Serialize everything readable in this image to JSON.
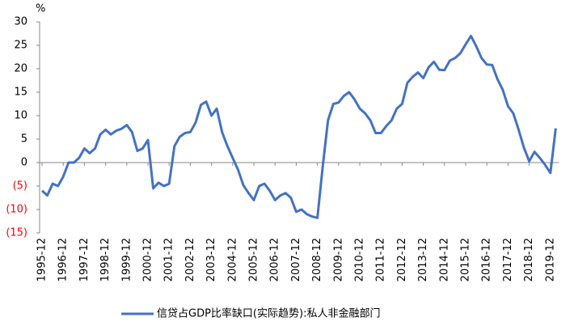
{
  "chart_data": {
    "type": "line",
    "unit": "%",
    "categories": [
      "1995-12",
      null,
      null,
      null,
      "1996-12",
      null,
      null,
      null,
      "1997-12",
      null,
      null,
      null,
      "1998-12",
      null,
      null,
      null,
      "1999-12",
      null,
      null,
      null,
      "2000-12",
      null,
      null,
      null,
      "2001-12",
      null,
      null,
      null,
      "2002-12",
      null,
      null,
      null,
      "2003-12",
      null,
      null,
      null,
      "2004-12",
      null,
      null,
      null,
      "2005-12",
      null,
      null,
      null,
      "2006-12",
      null,
      null,
      null,
      "2007-12",
      null,
      null,
      null,
      "2008-12",
      null,
      null,
      null,
      "2009-12",
      null,
      null,
      null,
      "2010-12",
      null,
      null,
      null,
      "2011-12",
      null,
      null,
      null,
      "2012-12",
      null,
      null,
      null,
      "2013-12",
      null,
      null,
      null,
      "2014-12",
      null,
      null,
      null,
      "2015-12",
      null,
      null,
      null,
      "2016-12",
      null,
      null,
      null,
      "2017-12",
      null,
      null,
      null,
      "2018-12",
      null,
      null,
      null,
      "2019-12",
      null
    ],
    "series": [
      {
        "name": "信贷占GDP比率缺口(实际趋势):私人非金融部门",
        "color": "#4472c4",
        "values": [
          -6,
          -7,
          -4.5,
          -5,
          -3,
          0,
          0,
          1,
          3,
          2,
          3,
          6,
          7,
          6,
          6.8,
          7.2,
          8,
          6.5,
          2.5,
          3,
          4.8,
          -5.5,
          -4.3,
          -5,
          -4.5,
          3.5,
          5.5,
          6.3,
          6.5,
          8.5,
          12.3,
          13,
          10,
          11.5,
          6.5,
          3.5,
          1,
          -1.5,
          -4.8,
          -6.5,
          -8,
          -5,
          -4.5,
          -6,
          -8,
          -7,
          -6.5,
          -7.5,
          -10.5,
          -10,
          -11,
          -11.5,
          -11.8,
          -1,
          9,
          12.5,
          12.8,
          14.2,
          15,
          13.5,
          11.5,
          10.5,
          9,
          6.3,
          6.3,
          7.8,
          9,
          11.5,
          12.5,
          17,
          18.3,
          19.2,
          18,
          20.3,
          21.5,
          19.8,
          19.7,
          21.7,
          22.3,
          23.3,
          25.2,
          27,
          24.8,
          22.3,
          20.9,
          20.8,
          17.8,
          15.5,
          12,
          10.5,
          7,
          3.2,
          0.3,
          2.3,
          1,
          -0.5,
          -2.2,
          7.3
        ]
      }
    ],
    "ylim": [
      -15,
      30
    ],
    "yticks": [
      {
        "value": -15,
        "label": "(15)"
      },
      {
        "value": -10,
        "label": "(10)"
      },
      {
        "value": -5,
        "label": "(5)"
      },
      0,
      5,
      10,
      15,
      20,
      25,
      30
    ],
    "negative_tick_color": "#ff0000",
    "legend": "bottom"
  }
}
